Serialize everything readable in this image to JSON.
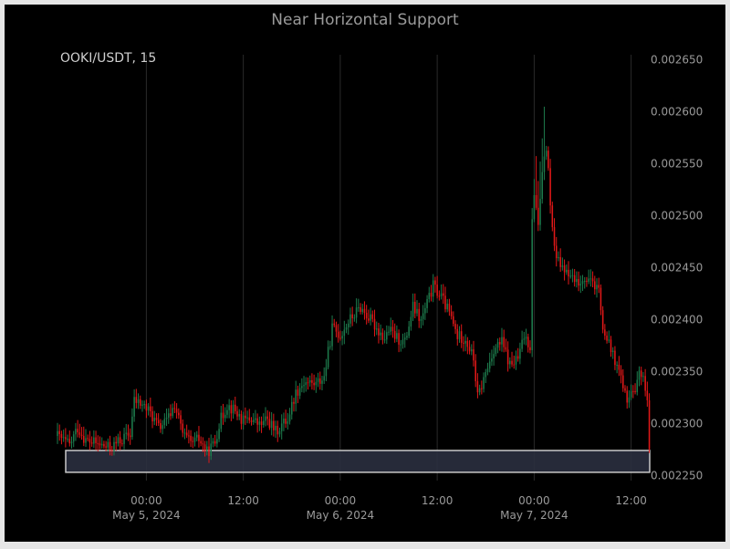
{
  "title": "Near Horizontal Support",
  "symbol_label": "OOKI/USDT, 15",
  "colors": {
    "background": "#000000",
    "up": "#1d7a4c",
    "down": "#e01818",
    "zone_fill": "#2a2f3f",
    "zone_stroke": "#c8c8c8",
    "grid": "#2a2a2a",
    "axis_text": "#9a9a9a"
  },
  "chart_data": {
    "type": "candlestick",
    "title": "Near Horizontal Support",
    "symbol": "OOKI/USDT",
    "timeframe": "15",
    "ylim": [
      0.002245,
      0.002655
    ],
    "y_ticks": [
      0.00225,
      0.0023,
      0.00235,
      0.0024,
      0.00245,
      0.0025,
      0.00255,
      0.0026,
      0.00265
    ],
    "y_tick_labels": [
      "0.002250",
      "0.002300",
      "0.002350",
      "0.002400",
      "0.002450",
      "0.002500",
      "0.002550",
      "0.002600",
      "0.002650"
    ],
    "x_ticks": [
      {
        "hours": 0,
        "time": "00:00",
        "date": "May 5, 2024"
      },
      {
        "hours": 12,
        "time": "12:00",
        "date": ""
      },
      {
        "hours": 24,
        "time": "00:00",
        "date": "May 6, 2024"
      },
      {
        "hours": 36,
        "time": "12:00",
        "date": ""
      },
      {
        "hours": 48,
        "time": "00:00",
        "date": "May 7, 2024"
      },
      {
        "hours": 60,
        "time": "12:00",
        "date": ""
      }
    ],
    "x_range_hours": [
      -11,
      62.3
    ],
    "support_zone": {
      "low": 0.002253,
      "high": 0.002274
    },
    "price_path": [
      [
        -11,
        0.002288
      ],
      [
        -9.5,
        0.002279
      ],
      [
        -8.5,
        0.002296
      ],
      [
        -7.5,
        0.002284
      ],
      [
        -6,
        0.00228
      ],
      [
        -4.5,
        0.002276
      ],
      [
        -3.5,
        0.002282
      ],
      [
        -2,
        0.00229
      ],
      [
        -1.5,
        0.002322
      ],
      [
        -0.5,
        0.002318
      ],
      [
        0.5,
        0.00231
      ],
      [
        1.5,
        0.002296
      ],
      [
        2.5,
        0.002302
      ],
      [
        3.5,
        0.002318
      ],
      [
        4.5,
        0.00229
      ],
      [
        5.5,
        0.00228
      ],
      [
        6.5,
        0.002285
      ],
      [
        7.5,
        0.002272
      ],
      [
        8.5,
        0.002282
      ],
      [
        9,
        0.0023
      ],
      [
        10,
        0.002318
      ],
      [
        11,
        0.002312
      ],
      [
        12,
        0.002302
      ],
      [
        13,
        0.002305
      ],
      [
        14,
        0.002298
      ],
      [
        15,
        0.002304
      ],
      [
        16,
        0.002292
      ],
      [
        17.5,
        0.002305
      ],
      [
        18.5,
        0.00233
      ],
      [
        19.5,
        0.00234
      ],
      [
        21,
        0.002338
      ],
      [
        22,
        0.002345
      ],
      [
        22.5,
        0.002368
      ],
      [
        23,
        0.002392
      ],
      [
        24,
        0.002385
      ],
      [
        25,
        0.002398
      ],
      [
        26.5,
        0.002412
      ],
      [
        27.5,
        0.002402
      ],
      [
        28.5,
        0.002392
      ],
      [
        29.5,
        0.002382
      ],
      [
        30,
        0.00239
      ],
      [
        31,
        0.002382
      ],
      [
        32,
        0.002378
      ],
      [
        33,
        0.002412
      ],
      [
        34,
        0.002398
      ],
      [
        34.5,
        0.00241
      ],
      [
        35.5,
        0.002432
      ],
      [
        36.5,
        0.002422
      ],
      [
        37.5,
        0.002406
      ],
      [
        38.5,
        0.002384
      ],
      [
        39.5,
        0.002382
      ],
      [
        40.5,
        0.002362
      ],
      [
        41,
        0.002325
      ],
      [
        42,
        0.002348
      ],
      [
        43,
        0.002372
      ],
      [
        44,
        0.002378
      ],
      [
        45,
        0.002356
      ],
      [
        46,
        0.002362
      ],
      [
        46.8,
        0.002385
      ],
      [
        47.5,
        0.002375
      ],
      [
        47.8,
        0.002525
      ],
      [
        48.5,
        0.002495
      ],
      [
        49,
        0.00254
      ],
      [
        49.5,
        0.002565
      ],
      [
        50,
        0.002515
      ],
      [
        50.5,
        0.002475
      ],
      [
        51,
        0.002455
      ],
      [
        52,
        0.002445
      ],
      [
        53,
        0.00244
      ],
      [
        54,
        0.002432
      ],
      [
        55,
        0.002438
      ],
      [
        56,
        0.002425
      ],
      [
        56.5,
        0.002385
      ],
      [
        57.5,
        0.002372
      ],
      [
        58.5,
        0.002348
      ],
      [
        59.5,
        0.002322
      ],
      [
        60.5,
        0.00233
      ],
      [
        61,
        0.002352
      ],
      [
        61.5,
        0.00234
      ],
      [
        62,
        0.002322
      ],
      [
        62.3,
        0.002268
      ]
    ]
  }
}
